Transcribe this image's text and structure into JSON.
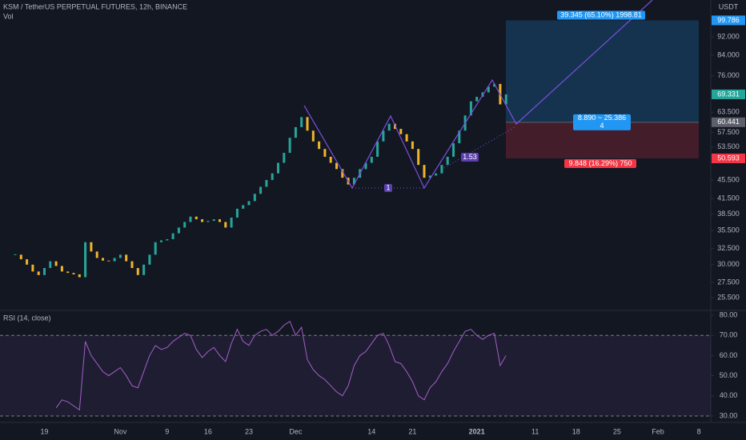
{
  "chart_data": [
    {
      "type": "candlestick",
      "title": "KSM / TetherUS PERPETUAL FUTURES, 12h, BINANCE",
      "indicator": "Vol",
      "unit": "USDT",
      "log_scale": true,
      "grid": false,
      "up_color": "#26a69a",
      "down_color": "#f0b429",
      "categories": [
        null,
        null,
        null,
        null,
        null,
        "19",
        null,
        null,
        null,
        null,
        null,
        null,
        null,
        null,
        null,
        null,
        null,
        null,
        "Nov",
        null,
        null,
        null,
        null,
        null,
        null,
        null,
        "9",
        null,
        null,
        null,
        null,
        null,
        null,
        "16",
        null,
        null,
        null,
        null,
        null,
        null,
        "23",
        null,
        null,
        null,
        null,
        null,
        null,
        null,
        "Dec",
        null,
        null,
        null,
        null,
        null,
        null,
        null,
        null,
        null,
        null,
        null,
        null,
        "14",
        null,
        null,
        null,
        null,
        null,
        null,
        "21",
        null,
        null,
        null,
        null,
        null,
        null,
        null,
        null,
        null,
        null,
        "2021",
        null,
        null,
        null,
        null,
        null,
        null,
        null,
        null,
        null,
        "11",
        null,
        null,
        null,
        null,
        null,
        null,
        "18",
        null,
        null,
        null,
        null,
        null,
        null,
        "25",
        null,
        null,
        null,
        null,
        null,
        null,
        "Feb",
        null,
        null,
        null,
        null,
        null,
        null,
        "8",
        null
      ],
      "values": [
        31.5,
        30.8,
        30,
        29,
        28.5,
        29.5,
        30.5,
        29.8,
        29,
        28.8,
        28.6,
        28.2,
        33.5,
        32,
        31,
        30.6,
        30.5,
        31,
        31.5,
        30.5,
        29.5,
        28.5,
        30,
        31.5,
        33.5,
        33.8,
        34,
        35,
        36,
        37,
        38,
        37.5,
        37,
        37.2,
        37.5,
        37,
        36,
        37.8,
        39.5,
        40.2,
        41,
        42.5,
        44,
        45.5,
        47,
        49.5,
        52,
        56,
        59,
        62,
        58,
        55,
        53,
        51,
        49.5,
        48,
        46,
        44.5,
        46,
        48,
        49.5,
        51,
        55,
        58,
        60,
        58.5,
        57,
        55,
        53,
        49,
        46,
        46.5,
        47,
        49,
        51,
        54.5,
        58,
        62.5,
        67,
        68.5,
        70,
        72,
        73,
        66,
        69.331,
        null,
        null,
        null,
        null,
        null,
        null,
        null,
        null,
        null,
        null,
        null,
        null,
        null,
        null,
        null,
        null,
        null,
        null,
        null,
        null,
        null,
        null,
        null,
        null,
        null,
        null,
        null,
        null,
        null,
        null,
        null,
        null,
        null,
        null
      ],
      "ylim": [
        23.95,
        110.3
      ],
      "yticks": [
        {
          "value": 92,
          "label": "92.000"
        },
        {
          "value": 84,
          "label": "84.000"
        },
        {
          "value": 76,
          "label": "76.000"
        },
        {
          "value": 63.5,
          "label": "63.500"
        },
        {
          "value": 57.5,
          "label": "57.500"
        },
        {
          "value": 53.5,
          "label": "53.500"
        },
        {
          "value": 45.5,
          "label": "45.500"
        },
        {
          "value": 41.5,
          "label": "41.500"
        },
        {
          "value": 38.5,
          "label": "38.500"
        },
        {
          "value": 35.5,
          "label": "35.500"
        },
        {
          "value": 32.5,
          "label": "32.500"
        },
        {
          "value": 30,
          "label": "30.000"
        },
        {
          "value": 27.5,
          "label": "27.500"
        },
        {
          "value": 25.5,
          "label": "25.500"
        }
      ],
      "position": {
        "target": 99.786,
        "entry": 60.441,
        "stop": 50.593,
        "target_color": "#2196f3",
        "entry_color": "#5d606b",
        "stop_color": "#f23645",
        "target_label": "39.345 (65.10%) 1998.81",
        "range_label": "8.890 ~ 25.386",
        "count_label": "4",
        "stop_label": "9.848 (16.29%) 750"
      },
      "annotations": [
        "1",
        "1.53"
      ]
    },
    {
      "type": "line",
      "title": "RSI (14, close)",
      "color": "#a45fc7",
      "values": [
        null,
        null,
        null,
        null,
        null,
        null,
        null,
        34,
        38,
        37,
        35,
        33,
        67,
        60,
        56,
        52,
        50,
        52,
        54,
        50,
        45,
        44,
        52,
        60,
        65,
        63,
        64,
        67,
        69,
        71,
        70,
        63,
        59,
        62,
        64,
        60,
        57,
        66,
        73,
        67,
        65,
        70,
        72,
        73,
        70,
        72,
        75,
        77,
        70,
        74,
        58,
        53,
        50,
        48,
        45,
        42,
        40,
        45,
        55,
        60,
        62,
        66,
        70,
        71,
        65,
        57,
        56,
        52,
        47,
        40,
        38,
        44,
        47,
        52,
        56,
        62,
        67,
        72,
        73,
        70,
        68,
        70,
        71,
        55,
        60,
        null,
        null,
        null,
        null,
        null,
        null,
        null,
        null,
        null,
        null,
        null,
        null,
        null,
        null,
        null,
        null,
        null,
        null,
        null,
        null,
        null,
        null,
        null,
        null,
        null,
        null,
        null,
        null,
        null,
        null,
        null,
        null,
        null,
        null
      ],
      "ylim": [
        26.8,
        82.4
      ],
      "yticks": [
        {
          "value": 80,
          "label": "80.00"
        },
        {
          "value": 70,
          "label": "70.00"
        },
        {
          "value": 60,
          "label": "60.00"
        },
        {
          "value": 50,
          "label": "50.00"
        },
        {
          "value": 40,
          "label": "40.00"
        },
        {
          "value": 30,
          "label": "30.00"
        }
      ],
      "band": [
        30,
        70
      ]
    }
  ]
}
